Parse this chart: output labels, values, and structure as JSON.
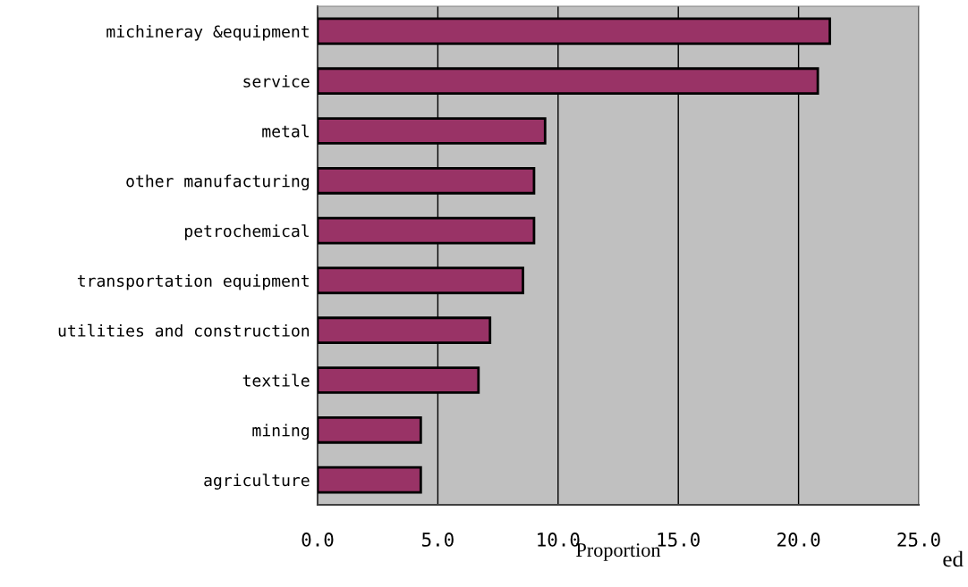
{
  "chart_data": {
    "type": "bar",
    "orientation": "horizontal",
    "xlabel": "Proportion",
    "categories": [
      "michineray &equipment",
      "service",
      "metal",
      "other manufacturing",
      "petrochemical",
      "transportation equipment",
      "utilities and construction",
      "textile",
      "mining",
      "agriculture"
    ],
    "values": [
      21.3,
      20.8,
      9.46,
      9.0,
      9.0,
      8.54,
      7.17,
      6.69,
      4.29,
      4.29
    ],
    "color": "#993366",
    "xlim": [
      0,
      25
    ],
    "xticks": [
      {
        "value": 0,
        "label": "0.0"
      },
      {
        "value": 5,
        "label": "5.0"
      },
      {
        "value": 10,
        "label": "10.0"
      },
      {
        "value": 15,
        "label": "15.0"
      },
      {
        "value": 20,
        "label": "20.0"
      },
      {
        "value": 25,
        "label": "25.0"
      }
    ],
    "grid": "x",
    "legend": false,
    "annotations": [
      "ed"
    ]
  }
}
